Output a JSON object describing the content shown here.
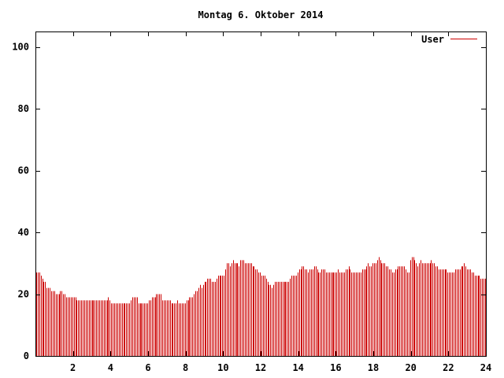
{
  "chart_data": {
    "type": "bar",
    "title": "Montag 6. Oktober 2014",
    "xlabel": "",
    "ylabel": "",
    "xlim": [
      0,
      24
    ],
    "ylim": [
      0,
      105
    ],
    "x_ticks": [
      "2",
      "4",
      "6",
      "8",
      "10",
      "12",
      "14",
      "16",
      "18",
      "20",
      "22",
      "24"
    ],
    "y_ticks": [
      "0",
      "20",
      "40",
      "60",
      "80",
      "100"
    ],
    "grid": false,
    "legend_position": "top-right",
    "series": [
      {
        "name": "User",
        "color": "#cc0000",
        "interval_hours": 0.0833,
        "values": [
          27,
          27,
          27,
          26,
          25,
          24,
          24,
          22,
          22,
          22,
          21,
          21,
          21,
          20,
          20,
          20,
          21,
          21,
          20,
          20,
          19,
          19,
          19,
          19,
          19,
          19,
          19,
          18,
          18,
          18,
          18,
          18,
          18,
          18,
          18,
          18,
          18,
          18,
          18,
          18,
          18,
          18,
          18,
          18,
          18,
          18,
          18,
          18,
          19,
          18,
          17,
          17,
          17,
          17,
          17,
          17,
          17,
          17,
          17,
          17,
          17,
          17,
          17,
          18,
          19,
          19,
          19,
          19,
          17,
          17,
          17,
          17,
          17,
          17,
          17,
          18,
          18,
          19,
          19,
          19,
          20,
          20,
          20,
          20,
          18,
          18,
          18,
          18,
          18,
          18,
          17,
          17,
          17,
          17,
          18,
          17,
          17,
          17,
          17,
          17,
          18,
          18,
          19,
          19,
          19,
          20,
          21,
          21,
          22,
          23,
          22,
          23,
          24,
          24,
          25,
          25,
          25,
          24,
          24,
          24,
          25,
          26,
          26,
          26,
          26,
          26,
          28,
          30,
          30,
          29,
          30,
          31,
          30,
          30,
          30,
          29,
          31,
          31,
          31,
          30,
          30,
          30,
          30,
          30,
          29,
          29,
          28,
          28,
          27,
          27,
          26,
          26,
          26,
          25,
          24,
          23,
          23,
          22,
          23,
          24,
          24,
          24,
          24,
          24,
          24,
          24,
          24,
          24,
          24,
          25,
          26,
          26,
          26,
          26,
          27,
          28,
          28,
          29,
          29,
          28,
          28,
          27,
          28,
          28,
          28,
          29,
          29,
          28,
          27,
          27,
          28,
          28,
          28,
          27,
          27,
          27,
          27,
          27,
          27,
          27,
          27,
          28,
          27,
          27,
          27,
          27,
          28,
          28,
          29,
          28,
          27,
          27,
          27,
          27,
          27,
          27,
          27,
          28,
          28,
          28,
          29,
          30,
          29,
          29,
          30,
          30,
          30,
          31,
          32,
          31,
          30,
          30,
          30,
          29,
          29,
          28,
          28,
          27,
          27,
          28,
          28,
          29,
          29,
          29,
          29,
          29,
          28,
          27,
          27,
          31,
          32,
          32,
          31,
          30,
          29,
          30,
          31,
          30,
          30,
          30,
          30,
          30,
          30,
          31,
          30,
          30,
          29,
          29,
          28,
          28,
          28,
          28,
          28,
          28,
          27,
          27,
          27,
          27,
          27,
          28,
          28,
          28,
          28,
          29,
          29,
          30,
          29,
          28,
          28,
          28,
          27,
          27,
          26,
          26,
          26,
          26,
          25,
          25,
          25,
          25
        ]
      }
    ]
  }
}
